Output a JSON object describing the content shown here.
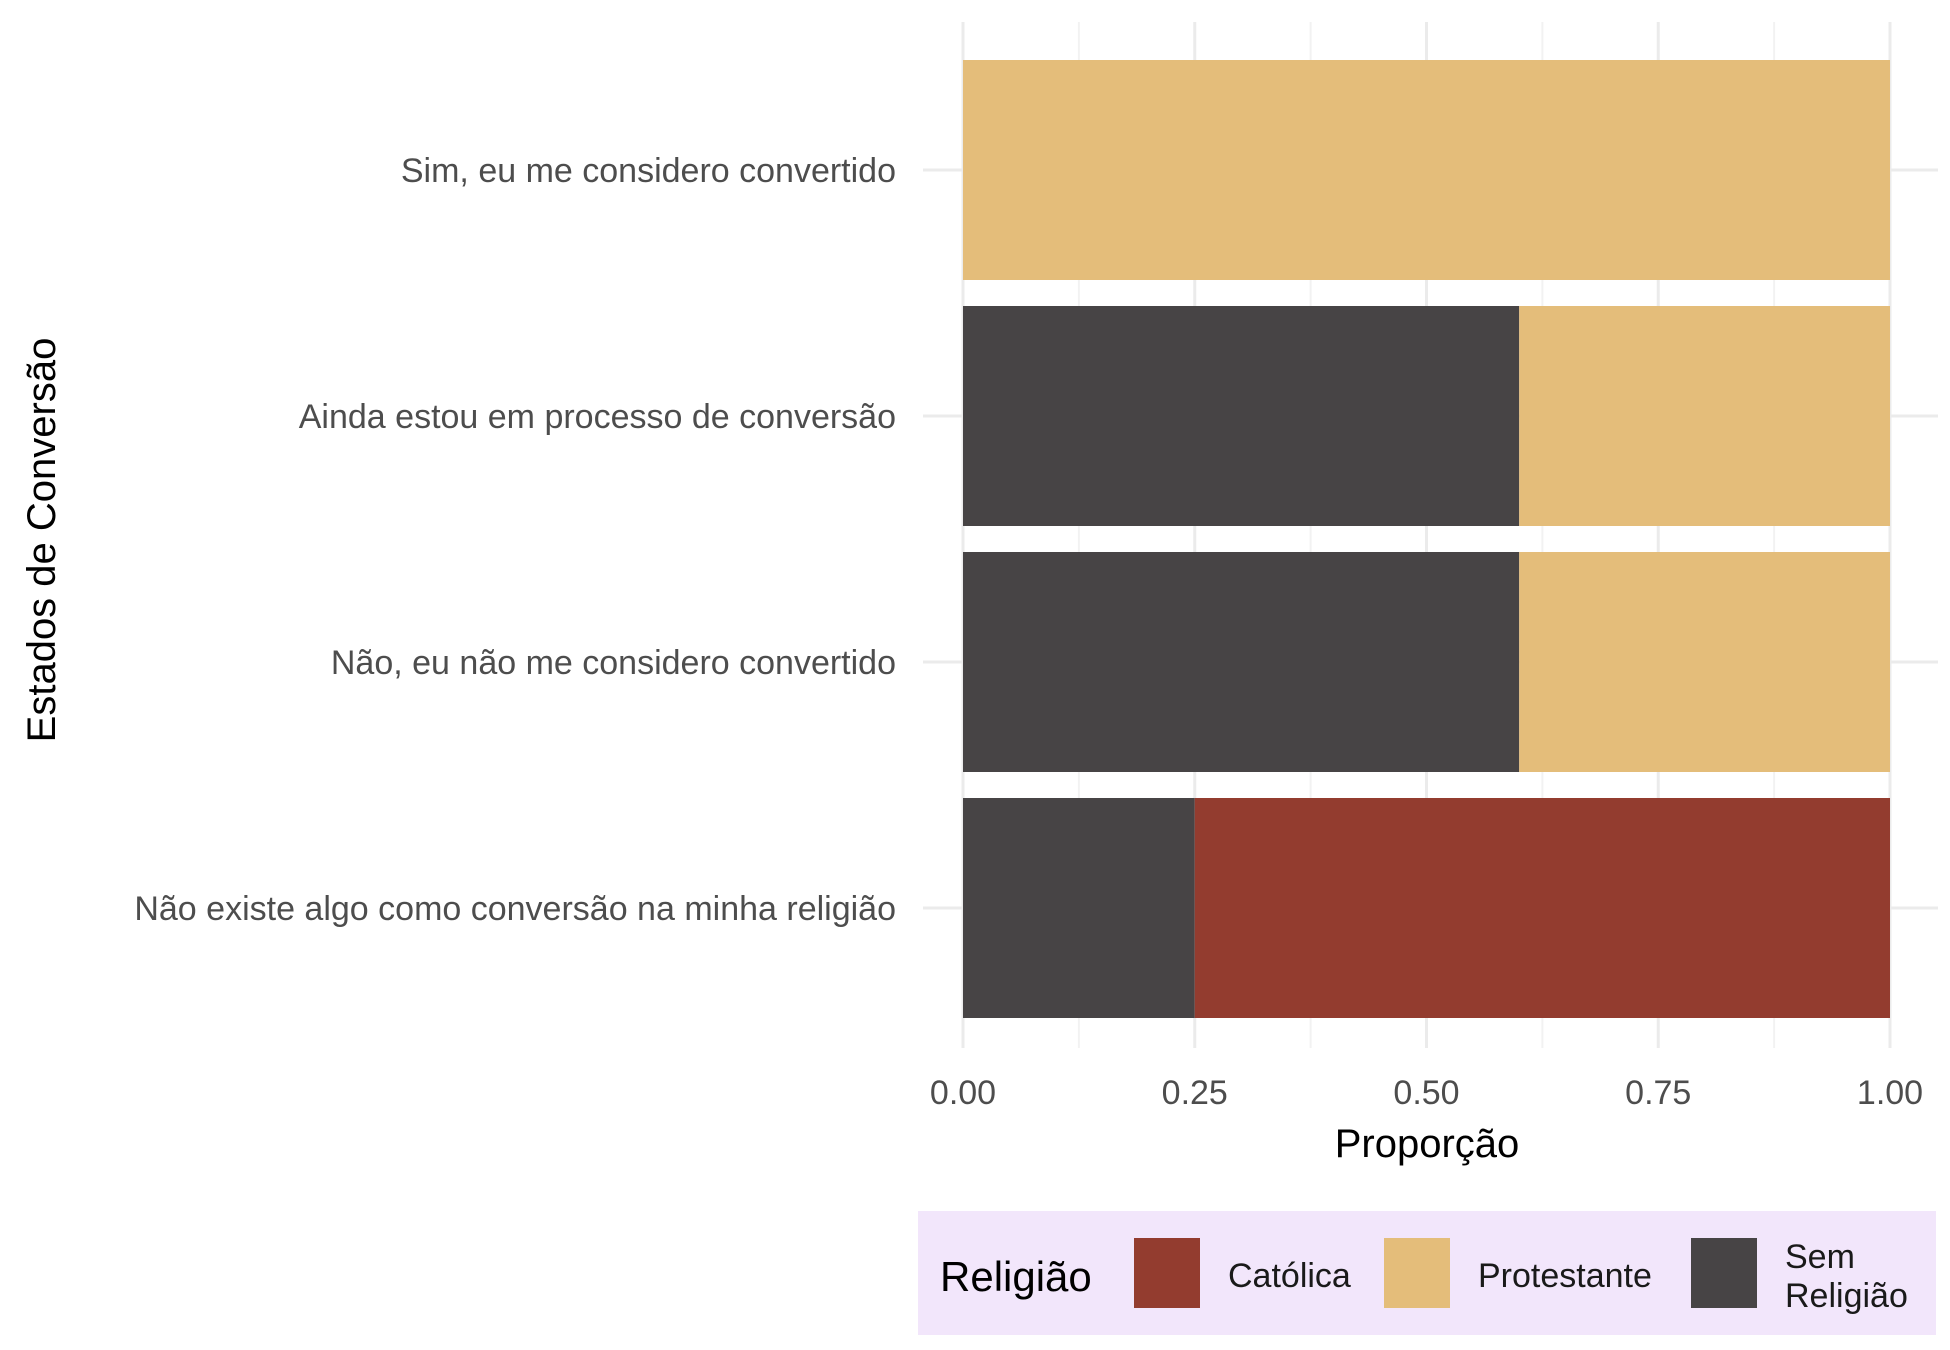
{
  "chart_data": {
    "type": "bar",
    "orientation": "horizontal",
    "stacked": true,
    "categories": [
      "Sim, eu me considero convertido",
      "Ainda estou em processo de conversão",
      "Não, eu não me considero convertido",
      "Não existe algo como conversão na minha religião"
    ],
    "series": [
      {
        "name": "Católica",
        "color": "#933C2F",
        "values": [
          0,
          0,
          0,
          0.75
        ]
      },
      {
        "name": "Protestante",
        "color": "#E4BD7A",
        "values": [
          1,
          0.4,
          0.4,
          0
        ]
      },
      {
        "name": "Sem Religião",
        "color": "#474445",
        "values": [
          0,
          0.6,
          0.6,
          0.25
        ]
      }
    ],
    "stack_order": [
      "Sem Religião",
      "Protestante",
      "Católica"
    ],
    "xlabel": "Proporção",
    "ylabel": "Estados de Conversão",
    "xlim": [
      0,
      1
    ],
    "xticks": [
      "0.00",
      "0.25",
      "0.50",
      "0.75",
      "1.00"
    ],
    "grid": true,
    "legend": {
      "title": "Religião",
      "position": "bottom",
      "background": "#F2E6FB",
      "entries": [
        {
          "label_lines": [
            "Católica"
          ],
          "color": "#933C2F"
        },
        {
          "label_lines": [
            "Protestante"
          ],
          "color": "#E4BD7A"
        },
        {
          "label_lines": [
            "Sem",
            "Religião"
          ],
          "color": "#474445"
        }
      ]
    }
  }
}
